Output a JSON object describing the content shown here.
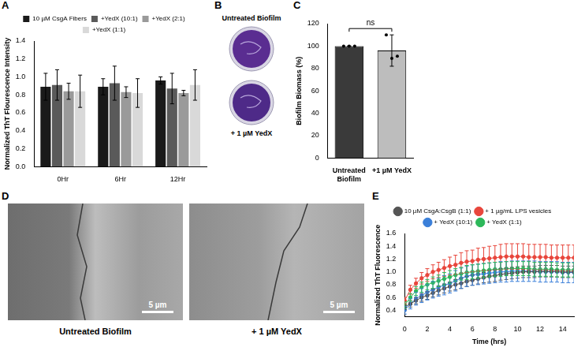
{
  "chart_data": [
    {
      "panel": "A",
      "type": "bar",
      "categories": [
        "0Hr",
        "6Hr",
        "12Hr"
      ],
      "y_label": "Normalized ThT Flourescence Intensity",
      "series": [
        {
          "name": "10 µM CsgA Fibers",
          "color": "#1a1a1a",
          "values": [
            0.89,
            0.89,
            0.96
          ],
          "errors": [
            0.15,
            0.09,
            0.04
          ]
        },
        {
          "name": "+YedX (10:1)",
          "color": "#5a5a5a",
          "values": [
            0.91,
            0.93,
            0.87
          ],
          "errors": [
            0.17,
            0.19,
            0.17
          ]
        },
        {
          "name": "+YedX (2:1)",
          "color": "#9a9a9a",
          "values": [
            0.84,
            0.83,
            0.82
          ],
          "errors": [
            0.09,
            0.06,
            0.03
          ]
        },
        {
          "name": "+YedX (1:1)",
          "color": "#d9d9d9",
          "values": [
            0.84,
            0.82,
            0.91
          ],
          "errors": [
            0.18,
            0.16,
            0.17
          ]
        }
      ],
      "ylim": [
        0,
        1.4
      ],
      "yticks": [
        {
          "value": 0,
          "label": "0.0"
        },
        0.2,
        0.4,
        0.6,
        0.8,
        {
          "value": 1,
          "label": "1.0"
        },
        1.2,
        1.4
      ],
      "legend": "top",
      "grid": false
    },
    {
      "panel": "C",
      "type": "bar",
      "categories": [
        "Untreated Biofilm",
        "+1 µM YedX"
      ],
      "values": [
        100,
        96
      ],
      "errors": [
        0,
        14
      ],
      "points": [
        [
          100,
          100,
          100
        ],
        [
          110,
          89,
          91
        ]
      ],
      "colors": [
        "#3a3a3a",
        "#bdbdbd"
      ],
      "y_label": "Biofilm Biomass (%)",
      "ylim": [
        0,
        120
      ],
      "yticks": [
        0,
        20,
        40,
        60,
        80,
        100,
        120
      ],
      "annotations": [
        {
          "text": "ns"
        }
      ],
      "grid": false
    },
    {
      "panel": "E",
      "type": "line",
      "x": [
        0,
        0.5,
        1,
        1.5,
        2,
        2.5,
        3,
        3.5,
        4,
        4.5,
        5,
        5.5,
        6,
        6.5,
        7,
        7.5,
        8,
        8.5,
        9,
        9.5,
        10,
        10.5,
        11,
        11.5,
        12,
        12.5,
        13,
        13.5,
        14,
        14.5,
        15
      ],
      "series": [
        {
          "name": "10 µM CsgA:CsgB (1:1)",
          "color": "#555555",
          "values": [
            0.45,
            0.5,
            0.55,
            0.6,
            0.63,
            0.67,
            0.71,
            0.74,
            0.77,
            0.8,
            0.82,
            0.85,
            0.87,
            0.89,
            0.91,
            0.93,
            0.94,
            0.96,
            0.97,
            0.98,
            0.99,
            1.0,
            1.0,
            1.0,
            1.01,
            1.01,
            1.01,
            1.01,
            1.0,
            1.0,
            1.0
          ],
          "errors": [
            0.04,
            0.05,
            0.05,
            0.06,
            0.06,
            0.06,
            0.07,
            0.07,
            0.07,
            0.08,
            0.08,
            0.08,
            0.08,
            0.08,
            0.08,
            0.09,
            0.09,
            0.09,
            0.09,
            0.09,
            0.09,
            0.09,
            0.09,
            0.09,
            0.09,
            0.09,
            0.09,
            0.09,
            0.09,
            0.09,
            0.09
          ]
        },
        {
          "name": "+ 1 µg/mL LPS vesicles",
          "color": "#e8463c",
          "values": [
            0.55,
            0.72,
            0.82,
            0.9,
            0.95,
            1.0,
            1.03,
            1.06,
            1.09,
            1.11,
            1.14,
            1.16,
            1.17,
            1.19,
            1.2,
            1.21,
            1.22,
            1.23,
            1.24,
            1.24,
            1.24,
            1.24,
            1.23,
            1.23,
            1.23,
            1.23,
            1.22,
            1.22,
            1.22,
            1.22,
            1.22
          ],
          "errors": [
            0.05,
            0.07,
            0.08,
            0.09,
            0.1,
            0.11,
            0.12,
            0.13,
            0.14,
            0.15,
            0.16,
            0.17,
            0.17,
            0.18,
            0.18,
            0.19,
            0.19,
            0.2,
            0.2,
            0.2,
            0.2,
            0.2,
            0.2,
            0.2,
            0.2,
            0.2,
            0.2,
            0.2,
            0.2,
            0.2,
            0.2
          ]
        },
        {
          "name": "+ YedX (10:1)",
          "color": "#3b7fd9",
          "values": [
            0.4,
            0.5,
            0.58,
            0.63,
            0.68,
            0.72,
            0.76,
            0.79,
            0.82,
            0.86,
            0.9,
            0.93,
            0.95,
            0.96,
            0.97,
            0.98,
            0.99,
            1.0,
            1.0,
            1.01,
            1.01,
            1.01,
            1.01,
            1.01,
            1.0,
            1.0,
            1.0,
            1.0,
            0.99,
            0.99,
            0.99
          ],
          "errors": [
            0.06,
            0.08,
            0.1,
            0.11,
            0.12,
            0.13,
            0.14,
            0.15,
            0.15,
            0.16,
            0.16,
            0.16,
            0.16,
            0.16,
            0.16,
            0.16,
            0.16,
            0.16,
            0.16,
            0.16,
            0.16,
            0.16,
            0.16,
            0.16,
            0.16,
            0.16,
            0.16,
            0.16,
            0.16,
            0.16,
            0.16
          ]
        },
        {
          "name": "+ YedX (1:1)",
          "color": "#2db85a",
          "values": [
            0.48,
            0.6,
            0.7,
            0.76,
            0.8,
            0.83,
            0.86,
            0.89,
            0.92,
            0.95,
            0.97,
            0.99,
            1.0,
            1.01,
            1.02,
            1.03,
            1.04,
            1.04,
            1.05,
            1.05,
            1.05,
            1.05,
            1.05,
            1.04,
            1.04,
            1.04,
            1.04,
            1.03,
            1.03,
            1.03,
            1.03
          ],
          "errors": [
            0.05,
            0.06,
            0.07,
            0.08,
            0.08,
            0.09,
            0.09,
            0.1,
            0.1,
            0.1,
            0.1,
            0.11,
            0.11,
            0.11,
            0.11,
            0.11,
            0.11,
            0.11,
            0.11,
            0.11,
            0.11,
            0.11,
            0.11,
            0.11,
            0.11,
            0.11,
            0.11,
            0.11,
            0.11,
            0.11,
            0.11
          ]
        }
      ],
      "x_label": "Time (hrs)",
      "y_label": "Normalized ThT Fluorescence",
      "xlim": [
        0,
        15
      ],
      "xticks": [
        0,
        2,
        4,
        6,
        8,
        10,
        12,
        14
      ],
      "ylim": [
        0.3,
        1.6
      ],
      "yticks": [
        0.4,
        0.6,
        0.8,
        {
          "value": 1,
          "label": "1.0"
        },
        1.2,
        1.4,
        1.6
      ],
      "legend": "top",
      "marker": "circle",
      "grid": false
    }
  ],
  "images": [
    {
      "panel": "B",
      "labels": [
        "Untreated Biofilm",
        "+ 1 µM YedX"
      ]
    },
    {
      "panel": "D",
      "images": [
        {
          "label": "Untreated Biofilm",
          "scale_bar": "5 µm"
        },
        {
          "label": "+ 1 µM YedX",
          "scale_bar": "5 µm"
        }
      ]
    }
  ]
}
